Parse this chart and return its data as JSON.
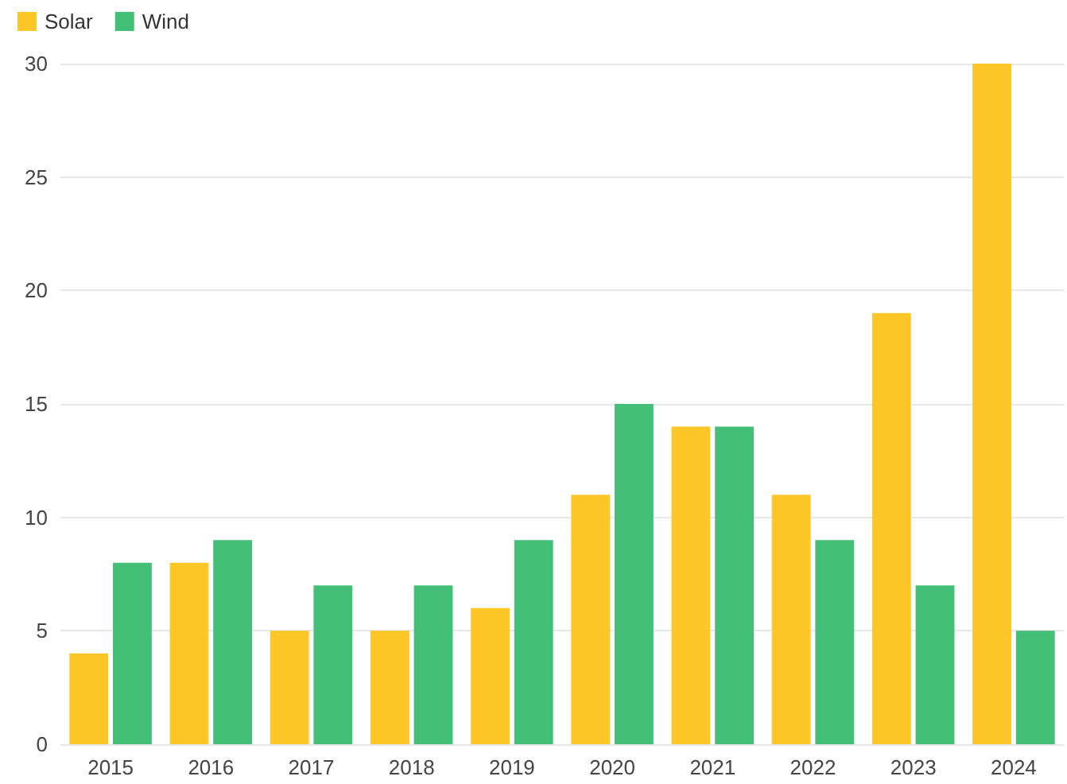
{
  "chart_data": {
    "type": "bar",
    "categories": [
      "2015",
      "2016",
      "2017",
      "2018",
      "2019",
      "2020",
      "2021",
      "2022",
      "2023",
      "2024"
    ],
    "series": [
      {
        "name": "Solar",
        "color": "#ffc627",
        "values": [
          4,
          8,
          5,
          5,
          6,
          11,
          14,
          11,
          19,
          30
        ]
      },
      {
        "name": "Wind",
        "color": "#44bf78",
        "values": [
          8,
          9,
          7,
          7,
          9,
          15,
          14,
          9,
          7,
          5
        ]
      }
    ],
    "ylim": [
      0,
      30
    ],
    "yticks": [
      0,
      5,
      10,
      15,
      20,
      25,
      30
    ],
    "grid": "y",
    "legend": "top left"
  }
}
